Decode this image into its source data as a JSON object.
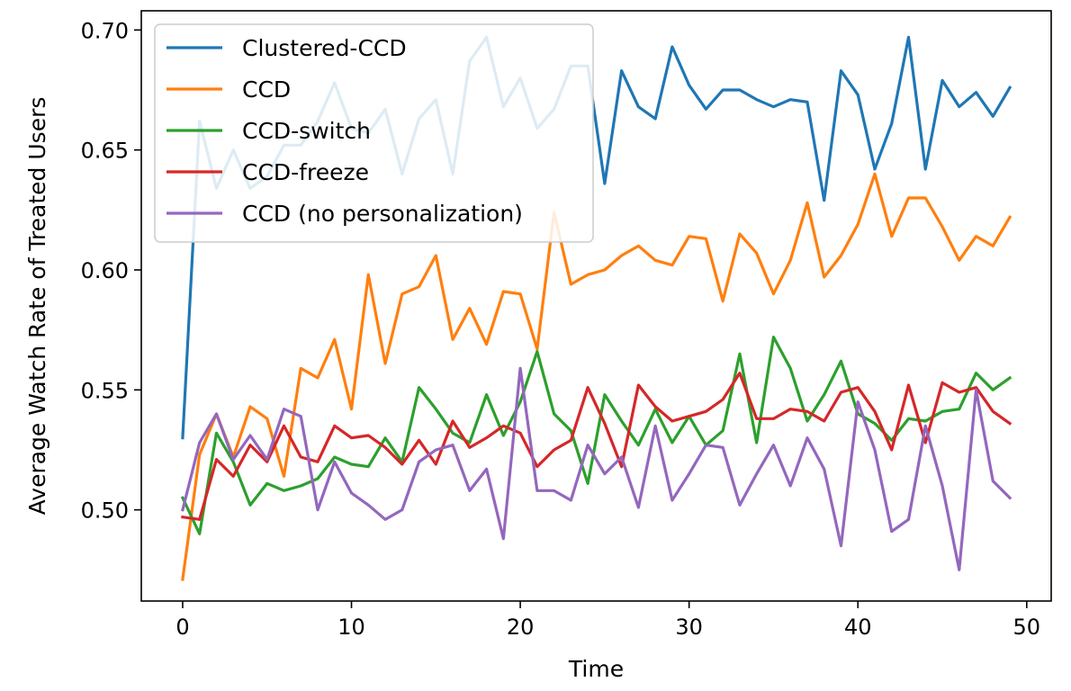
{
  "chart_data": {
    "type": "line",
    "title": "",
    "xlabel": "Time",
    "ylabel": "Average Watch Rate of Treated Users",
    "xlim": [
      -2.45,
      51.45
    ],
    "ylim": [
      0.462,
      0.708
    ],
    "xticks": [
      0,
      10,
      20,
      30,
      40,
      50
    ],
    "yticks": [
      0.5,
      0.55,
      0.6,
      0.65,
      0.7
    ],
    "ytick_labels": [
      "0.50",
      "0.55",
      "0.60",
      "0.65",
      "0.70"
    ],
    "grid": false,
    "legend_position": "upper-left",
    "x": [
      0,
      1,
      2,
      3,
      4,
      5,
      6,
      7,
      8,
      9,
      10,
      11,
      12,
      13,
      14,
      15,
      16,
      17,
      18,
      19,
      20,
      21,
      22,
      23,
      24,
      25,
      26,
      27,
      28,
      29,
      30,
      31,
      32,
      33,
      34,
      35,
      36,
      37,
      38,
      39,
      40,
      41,
      42,
      43,
      44,
      45,
      46,
      47,
      48,
      49
    ],
    "series": [
      {
        "name": "Clustered-CCD",
        "color": "#1f77b4",
        "values": [
          0.53,
          0.662,
          0.634,
          0.65,
          0.634,
          0.639,
          0.652,
          0.652,
          0.662,
          0.678,
          0.659,
          0.657,
          0.667,
          0.64,
          0.663,
          0.671,
          0.64,
          0.687,
          0.697,
          0.668,
          0.68,
          0.659,
          0.667,
          0.685,
          0.685,
          0.636,
          0.683,
          0.668,
          0.663,
          0.693,
          0.677,
          0.667,
          0.675,
          0.675,
          0.671,
          0.668,
          0.671,
          0.67,
          0.629,
          0.683,
          0.673,
          0.642,
          0.661,
          0.697,
          0.642,
          0.679,
          0.668,
          0.674,
          0.664,
          0.676
        ]
      },
      {
        "name": "CCD",
        "color": "#ff7f0e",
        "values": [
          0.471,
          0.523,
          0.54,
          0.522,
          0.543,
          0.538,
          0.514,
          0.559,
          0.555,
          0.571,
          0.542,
          0.598,
          0.561,
          0.59,
          0.593,
          0.606,
          0.571,
          0.584,
          0.569,
          0.591,
          0.59,
          0.567,
          0.624,
          0.594,
          0.598,
          0.6,
          0.606,
          0.61,
          0.604,
          0.602,
          0.614,
          0.613,
          0.587,
          0.615,
          0.607,
          0.59,
          0.604,
          0.628,
          0.597,
          0.606,
          0.619,
          0.64,
          0.614,
          0.63,
          0.63,
          0.618,
          0.604,
          0.614,
          0.61,
          0.622
        ]
      },
      {
        "name": "CCD-switch",
        "color": "#2ca02c",
        "values": [
          0.505,
          0.49,
          0.532,
          0.52,
          0.502,
          0.511,
          0.508,
          0.51,
          0.513,
          0.522,
          0.519,
          0.518,
          0.53,
          0.52,
          0.551,
          0.542,
          0.532,
          0.528,
          0.548,
          0.531,
          0.545,
          0.566,
          0.54,
          0.533,
          0.511,
          0.548,
          0.537,
          0.527,
          0.542,
          0.528,
          0.539,
          0.527,
          0.533,
          0.565,
          0.528,
          0.572,
          0.559,
          0.537,
          0.548,
          0.562,
          0.54,
          0.536,
          0.529,
          0.538,
          0.537,
          0.541,
          0.542,
          0.557,
          0.55,
          0.555
        ]
      },
      {
        "name": "CCD-freeze",
        "color": "#d62728",
        "values": [
          0.497,
          0.496,
          0.521,
          0.514,
          0.527,
          0.52,
          0.535,
          0.522,
          0.52,
          0.535,
          0.53,
          0.531,
          0.526,
          0.519,
          0.529,
          0.519,
          0.537,
          0.526,
          0.53,
          0.535,
          0.532,
          0.518,
          0.525,
          0.529,
          0.551,
          0.536,
          0.518,
          0.552,
          0.543,
          0.537,
          0.539,
          0.541,
          0.546,
          0.557,
          0.538,
          0.538,
          0.542,
          0.541,
          0.537,
          0.549,
          0.551,
          0.541,
          0.525,
          0.552,
          0.528,
          0.553,
          0.549,
          0.551,
          0.541,
          0.536
        ]
      },
      {
        "name": "CCD (no personalization)",
        "color": "#9467bd",
        "values": [
          0.5,
          0.528,
          0.54,
          0.521,
          0.531,
          0.521,
          0.542,
          0.539,
          0.5,
          0.52,
          0.507,
          0.502,
          0.496,
          0.5,
          0.52,
          0.525,
          0.527,
          0.508,
          0.517,
          0.488,
          0.559,
          0.508,
          0.508,
          0.504,
          0.527,
          0.515,
          0.522,
          0.501,
          0.535,
          0.504,
          0.515,
          0.527,
          0.526,
          0.502,
          0.515,
          0.527,
          0.51,
          0.53,
          0.517,
          0.485,
          0.545,
          0.525,
          0.491,
          0.496,
          0.535,
          0.51,
          0.475,
          0.55,
          0.512,
          0.505
        ]
      }
    ]
  }
}
